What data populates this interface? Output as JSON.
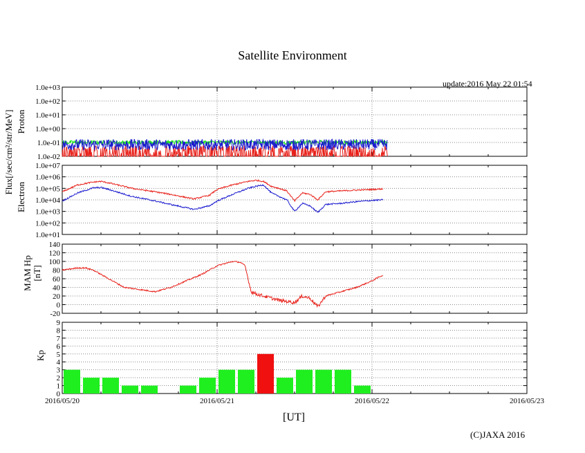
{
  "title": "Satellite Environment",
  "update": "update:2016 May 22 01:54",
  "copyright": "(C)JAXA 2016",
  "xlabel": "[UT]",
  "x_ticks": [
    "2016/05/20",
    "2016/05/21",
    "2016/05/22",
    "2016/05/23"
  ],
  "labels": {
    "flux": "Flux[/sec/cm²/str/MeV]",
    "proton": "Proton",
    "electron": "Electron",
    "mam_line1": "MAM Hp",
    "mam_line2": "[nT]",
    "kp": "Kp"
  },
  "colors": {
    "red": "#e8211a",
    "blue": "#1a1acf",
    "green": "#19e619",
    "bar_green": "#1fef1f",
    "bar_red": "#f01010"
  },
  "chart_data": [
    {
      "type": "line",
      "panel": "proton",
      "y_scale": "log",
      "ylim": [
        0.01,
        1000
      ],
      "yticks": [
        "1.0e-02",
        "1.0e-01",
        "1.0e+00",
        "1.0e+01",
        "1.0e+02",
        "1.0e+03"
      ],
      "xlim_days": [
        0,
        3
      ],
      "series": [
        {
          "name": "green",
          "note": "noisy ~0.1 level",
          "x": [
            0,
            2.1
          ],
          "y": [
            0.1,
            0.1
          ]
        },
        {
          "name": "blue",
          "note": "noisy ~0.07 level",
          "x": [
            0,
            2.1
          ],
          "y": [
            0.07,
            0.07
          ]
        },
        {
          "name": "red",
          "note": "spikes near 0.01–0.05",
          "x": [
            0,
            2.1
          ],
          "y": [
            0.02,
            0.02
          ]
        }
      ]
    },
    {
      "type": "line",
      "panel": "electron",
      "y_scale": "log",
      "ylim": [
        10,
        10000000
      ],
      "yticks": [
        "1.0e+01",
        "1.0e+02",
        "1.0e+03",
        "1.0e+04",
        "1.0e+05",
        "1.0e+06",
        "1.0e+07"
      ],
      "xlim_days": [
        0,
        3
      ],
      "series": [
        {
          "name": "red",
          "x": [
            0,
            0.1,
            0.2,
            0.25,
            0.3,
            0.45,
            0.6,
            0.7,
            0.85,
            0.95,
            1.0,
            1.1,
            1.2,
            1.25,
            1.3,
            1.35,
            1.4,
            1.45,
            1.5,
            1.55,
            1.6,
            1.65,
            1.7,
            1.8,
            1.9,
            2.0,
            2.07
          ],
          "y": [
            50000,
            200000,
            350000,
            400000,
            300000,
            100000,
            50000,
            30000,
            12000,
            25000,
            80000,
            200000,
            400000,
            500000,
            400000,
            150000,
            100000,
            60000,
            8000,
            40000,
            30000,
            10000,
            50000,
            60000,
            70000,
            80000,
            90000
          ]
        },
        {
          "name": "blue",
          "x": [
            0,
            0.1,
            0.2,
            0.25,
            0.3,
            0.45,
            0.6,
            0.7,
            0.85,
            0.95,
            1.0,
            1.1,
            1.2,
            1.25,
            1.3,
            1.35,
            1.4,
            1.45,
            1.5,
            1.55,
            1.6,
            1.65,
            1.7,
            1.8,
            1.9,
            2.0,
            2.07
          ],
          "y": [
            8000,
            40000,
            110000,
            120000,
            80000,
            20000,
            8000,
            4000,
            1500,
            3000,
            8000,
            30000,
            100000,
            150000,
            200000,
            40000,
            20000,
            10000,
            1000,
            5000,
            3000,
            800,
            4000,
            5000,
            7000,
            9000,
            10000
          ]
        }
      ]
    },
    {
      "type": "line",
      "panel": "mam_hp",
      "ylim": [
        -20,
        140
      ],
      "yticks": [
        "-20",
        "0",
        "20",
        "40",
        "60",
        "80",
        "100",
        "120",
        "140"
      ],
      "xlim_days": [
        0,
        3
      ],
      "series": [
        {
          "name": "red",
          "x": [
            0,
            0.1,
            0.15,
            0.2,
            0.25,
            0.3,
            0.4,
            0.5,
            0.6,
            0.7,
            0.8,
            0.9,
            1.0,
            1.05,
            1.1,
            1.15,
            1.18,
            1.22,
            1.25,
            1.3,
            1.4,
            1.5,
            1.55,
            1.6,
            1.65,
            1.7,
            1.8,
            1.9,
            2.0,
            2.05,
            2.07
          ],
          "y": [
            80,
            85,
            85,
            80,
            70,
            60,
            40,
            35,
            30,
            40,
            55,
            70,
            90,
            95,
            100,
            98,
            90,
            30,
            25,
            20,
            10,
            5,
            20,
            15,
            -5,
            20,
            30,
            40,
            55,
            65,
            68
          ]
        }
      ]
    },
    {
      "type": "bar",
      "panel": "kp",
      "ylim": [
        0,
        9
      ],
      "yticks": [
        "0",
        "1",
        "2",
        "3",
        "4",
        "5",
        "6",
        "7",
        "8",
        "9"
      ],
      "bar_width_days": 0.125,
      "bars": [
        {
          "x": 0,
          "value": 3,
          "color": "green"
        },
        {
          "x": 0.125,
          "value": 2,
          "color": "green"
        },
        {
          "x": 0.25,
          "value": 2,
          "color": "green"
        },
        {
          "x": 0.375,
          "value": 1,
          "color": "green"
        },
        {
          "x": 0.5,
          "value": 1,
          "color": "green"
        },
        {
          "x": 0.75,
          "value": 1,
          "color": "green"
        },
        {
          "x": 0.875,
          "value": 2,
          "color": "green"
        },
        {
          "x": 1.0,
          "value": 3,
          "color": "green"
        },
        {
          "x": 1.125,
          "value": 3,
          "color": "green"
        },
        {
          "x": 1.25,
          "value": 5,
          "color": "red"
        },
        {
          "x": 1.375,
          "value": 2,
          "color": "green"
        },
        {
          "x": 1.5,
          "value": 3,
          "color": "green"
        },
        {
          "x": 1.625,
          "value": 3,
          "color": "green"
        },
        {
          "x": 1.75,
          "value": 3,
          "color": "green"
        },
        {
          "x": 1.875,
          "value": 1,
          "color": "green"
        }
      ]
    }
  ]
}
